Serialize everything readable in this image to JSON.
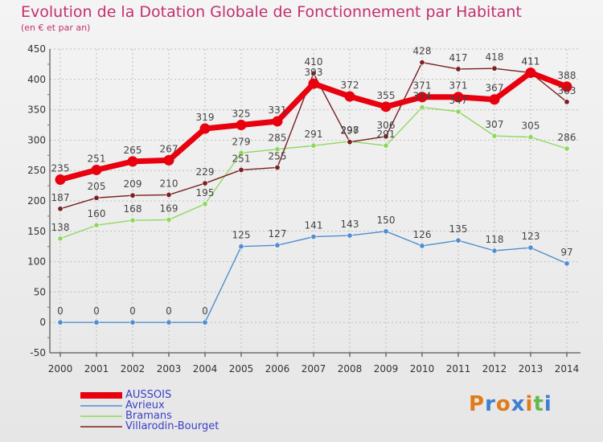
{
  "header": {
    "title": "Evolution de la Dotation Globale de Fonctionnement par Habitant",
    "subtitle": "(en € et par an)"
  },
  "logo_text": "Proxiti",
  "chart_data": {
    "type": "line",
    "title": "Evolution de la Dotation Globale de Fonctionnement par Habitant",
    "subtitle": "(en € et par an)",
    "xlabel": "",
    "ylabel": "",
    "ylim": [
      -50,
      450
    ],
    "yticks": [
      -50,
      0,
      50,
      100,
      150,
      200,
      250,
      300,
      350,
      400,
      450
    ],
    "grid": true,
    "legend_position": "bottom-left",
    "categories": [
      "2000",
      "2001",
      "2002",
      "2003",
      "2004",
      "2005",
      "2006",
      "2007",
      "2008",
      "2009",
      "2010",
      "2011",
      "2012",
      "2013",
      "2014"
    ],
    "series": [
      {
        "name": "AUSSOIS",
        "color": "#e8000f",
        "values": [
          235,
          251,
          265,
          267,
          319,
          325,
          331,
          393,
          372,
          355,
          371,
          371,
          367,
          411,
          388
        ]
      },
      {
        "name": "Avrieux",
        "color": "#4f8ed0",
        "values": [
          0,
          0,
          0,
          0,
          0,
          125,
          127,
          141,
          143,
          150,
          126,
          135,
          118,
          123,
          97
        ]
      },
      {
        "name": "Bramans",
        "color": "#8fd85f",
        "values": [
          138,
          160,
          168,
          169,
          195,
          279,
          285,
          291,
          298,
          291,
          354,
          347,
          307,
          305,
          286
        ]
      },
      {
        "name": "Villarodin-Bourget",
        "color": "#7a1f22",
        "values": [
          187,
          205,
          209,
          210,
          229,
          251,
          255,
          410,
          297,
          306,
          428,
          417,
          418,
          411,
          363
        ]
      }
    ]
  }
}
